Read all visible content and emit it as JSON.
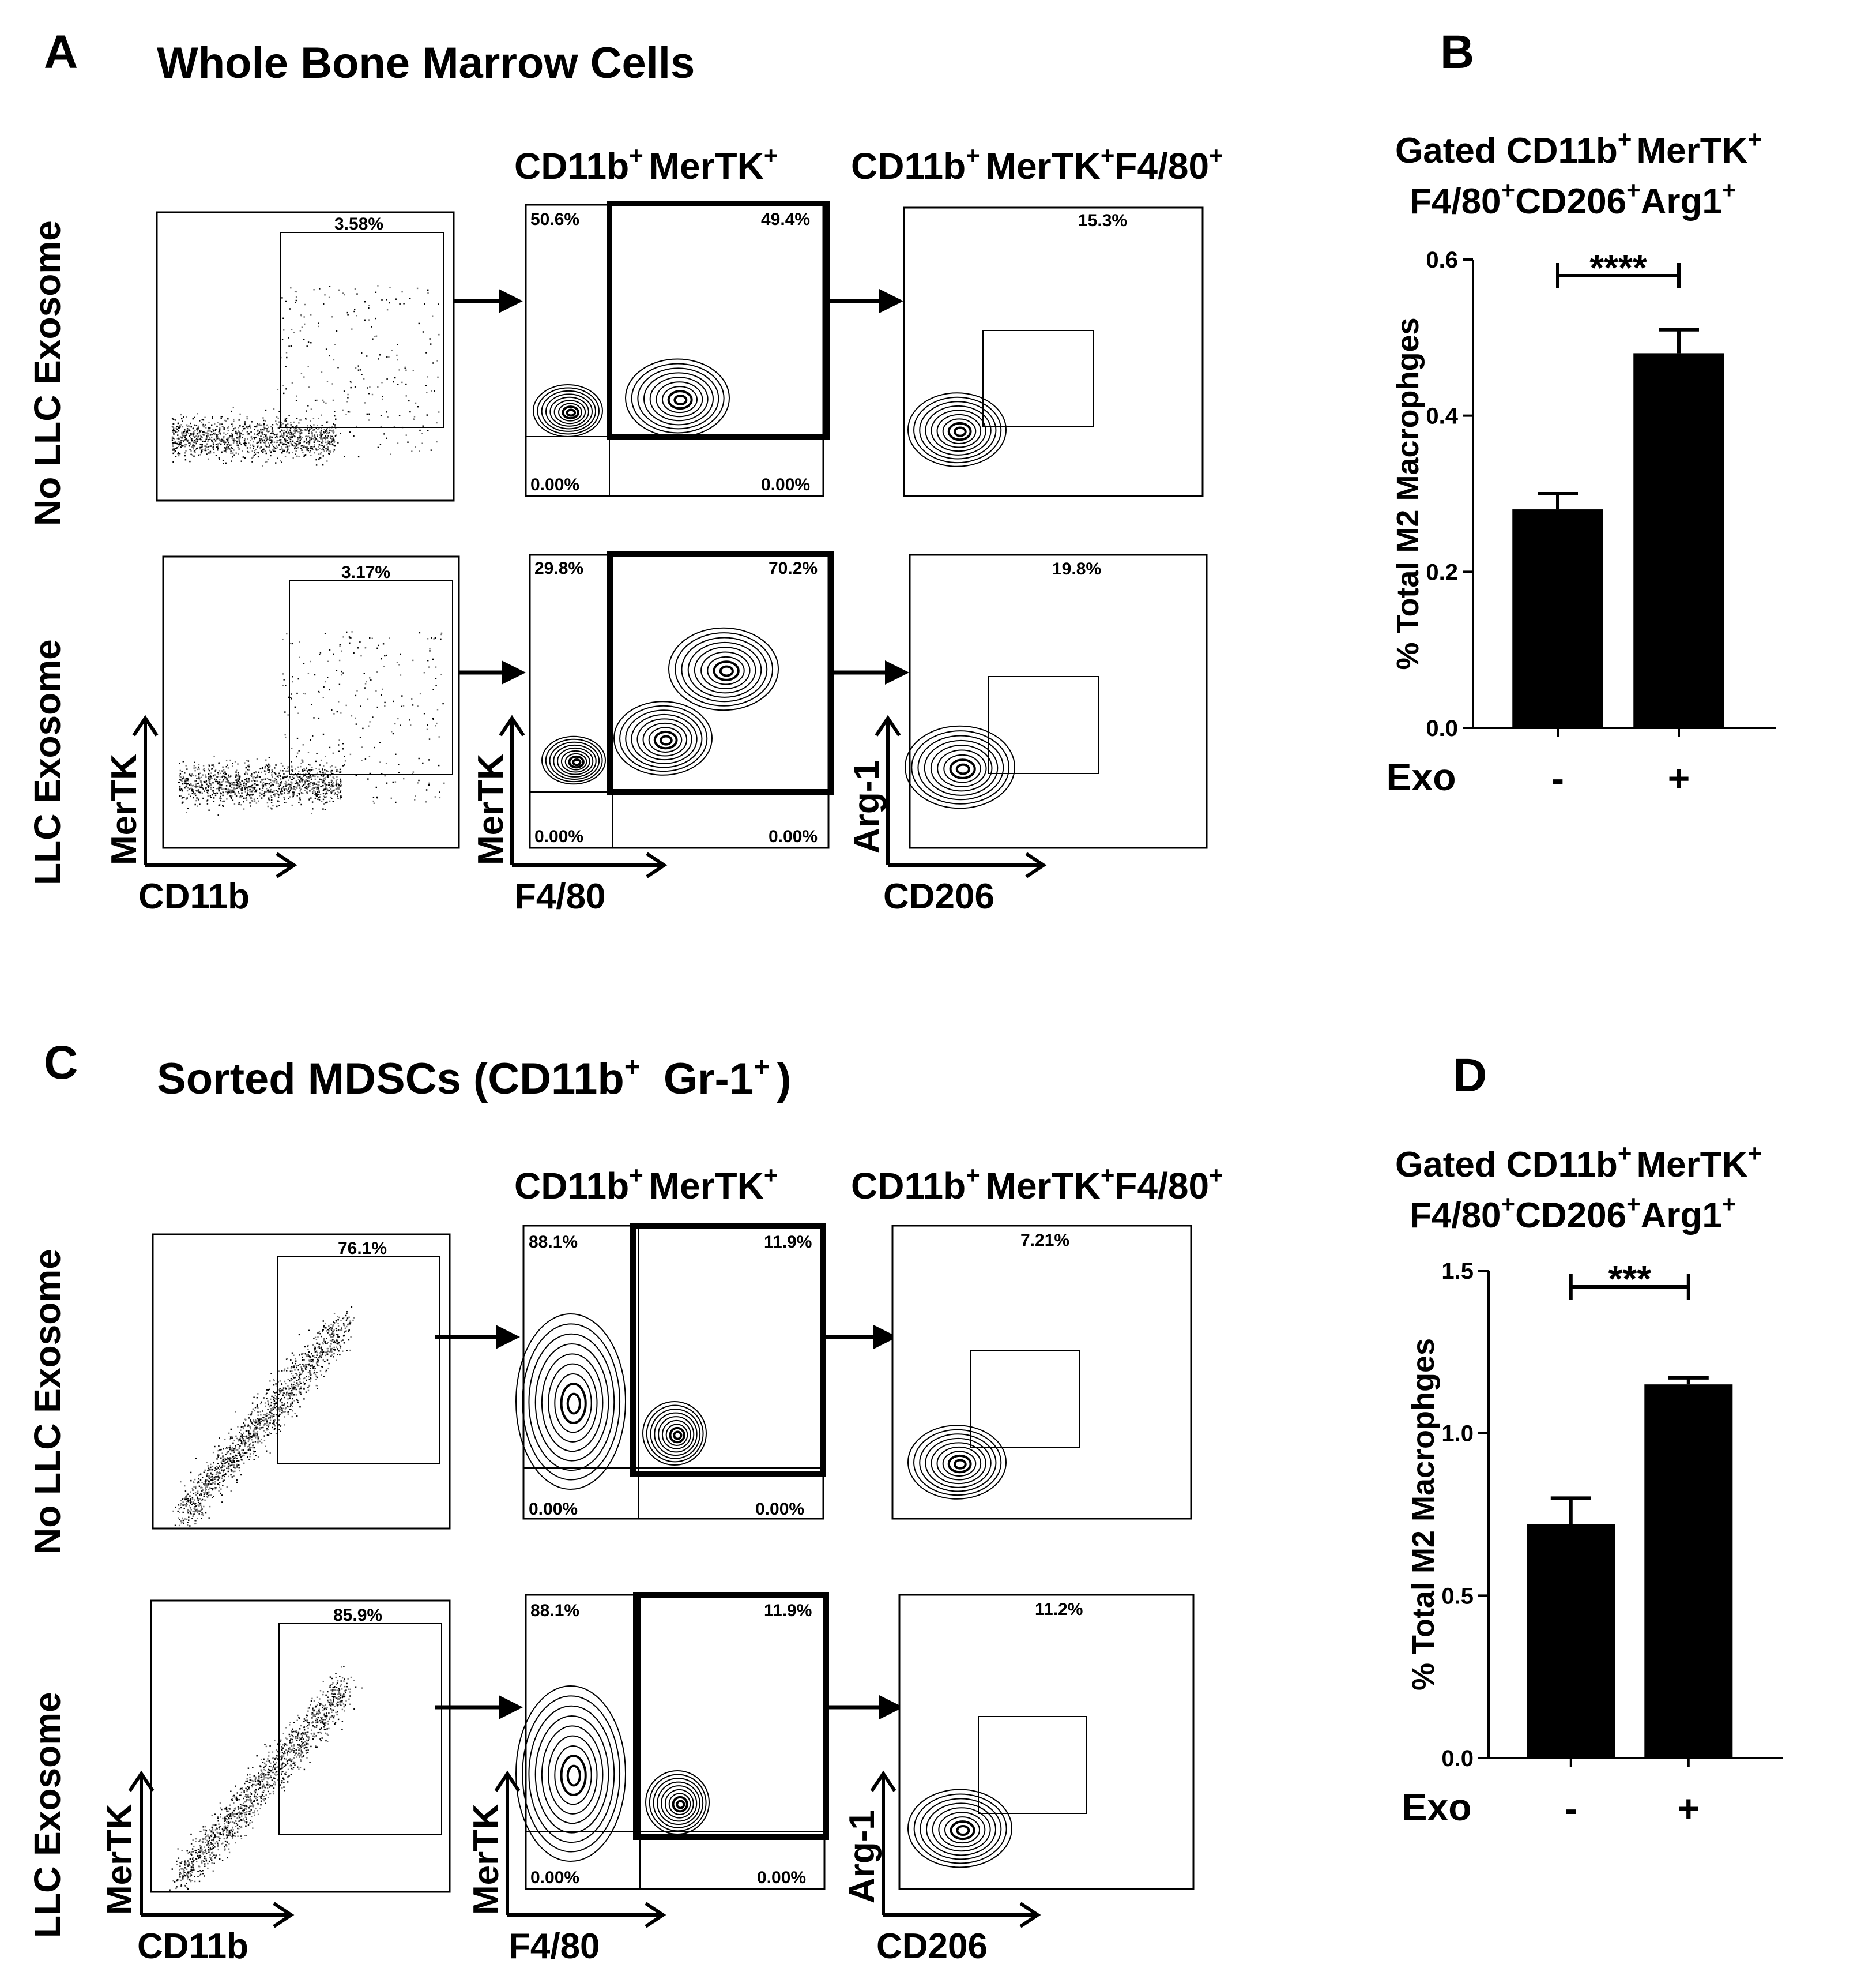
{
  "panels": {
    "A": {
      "letter": "A",
      "title": "Whole Bone Marrow Cells"
    },
    "B": {
      "letter": "B"
    },
    "C": {
      "letter": "C",
      "title_prefix": "Sorted MDSCs (CD11b",
      "title_mid": "Gr-1",
      "title_suffix": ")"
    },
    "D": {
      "letter": "D"
    }
  },
  "gate_headers": {
    "mer": {
      "p1": "CD11b",
      "p2": "MerTK",
      "sup": "+"
    },
    "f480": {
      "p1": "CD11b",
      "p2": "MerTK",
      "p3": "F4/80",
      "sup": "+"
    }
  },
  "row_labels": {
    "no_exo": "No LLC Exosome",
    "exo": "LLC Exosome"
  },
  "axis_labels": {
    "mertk": "MerTK",
    "cd11b": "CD11b",
    "f480": "F4/80",
    "arg1": "Arg-1",
    "cd206": "CD206"
  },
  "flow": {
    "A_row1": {
      "dot_gate": "3.58%",
      "q_ul": "50.6%",
      "q_ur": "49.4%",
      "q_ll": "0.00%",
      "q_lr": "0.00%",
      "m2_gate": "15.3%"
    },
    "A_row2": {
      "dot_gate": "3.17%",
      "q_ul": "29.8%",
      "q_ur": "70.2%",
      "q_ll": "0.00%",
      "q_lr": "0.00%",
      "m2_gate": "19.8%"
    },
    "C_row1": {
      "dot_gate": "76.1%",
      "q_ul": "88.1%",
      "q_ur": "11.9%",
      "q_ll": "0.00%",
      "q_lr": "0.00%",
      "m2_gate": "7.21%"
    },
    "C_row2": {
      "dot_gate": "85.9%",
      "q_ul": "88.1%",
      "q_ur": "11.9%",
      "q_ll": "0.00%",
      "q_lr": "0.00%",
      "m2_gate": "11.2%"
    }
  },
  "bar_titles": {
    "line1_a": "Gated CD11b",
    "line1_b": "MerTK",
    "line2_a": "F4/80",
    "line2_b": "CD206",
    "line2_c": "Arg1",
    "sup": "+"
  },
  "chart_data": [
    {
      "type": "bar",
      "panel": "B",
      "ylabel": "% Total M2 Macrophges",
      "xlabel": "Exo",
      "categories": [
        "-",
        "+"
      ],
      "values": [
        0.28,
        0.48
      ],
      "errors": [
        0.02,
        0.03
      ],
      "ylim": [
        0.0,
        0.6
      ],
      "yticks": [
        "0.0",
        "0.2",
        "0.4",
        "0.6"
      ],
      "significance": "****"
    },
    {
      "type": "bar",
      "panel": "D",
      "ylabel": "% Total M2 Macrophges",
      "xlabel": "Exo",
      "categories": [
        "-",
        "+"
      ],
      "values": [
        0.72,
        1.15
      ],
      "errors": [
        0.08,
        0.02
      ],
      "ylim": [
        0.0,
        1.5
      ],
      "yticks": [
        "0.0",
        "0.5",
        "1.0",
        "1.5"
      ],
      "significance": "***"
    }
  ]
}
